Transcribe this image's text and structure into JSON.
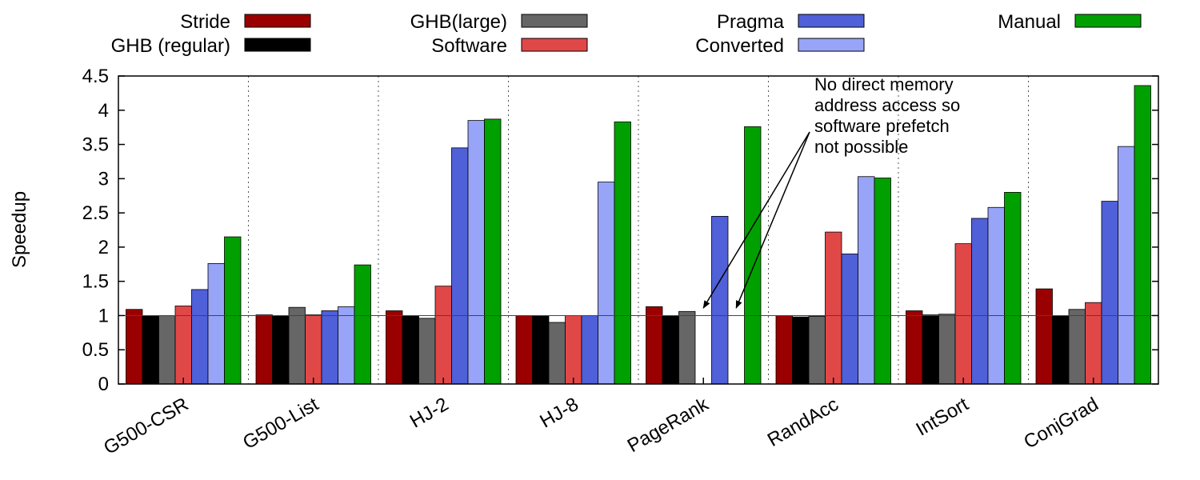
{
  "chart_data": {
    "type": "bar",
    "title": "",
    "xlabel": "",
    "ylabel": "Speedup",
    "ylim": [
      0,
      4.5
    ],
    "yticks": [
      "0",
      "0.5",
      "1",
      "1.5",
      "2",
      "2.5",
      "3",
      "3.5",
      "4",
      "4.5"
    ],
    "grid": "vertical-dotted",
    "reference_line": 1,
    "legend_placement": "top",
    "categories": [
      "G500-CSR",
      "G500-List",
      "HJ-2",
      "HJ-8",
      "PageRank",
      "RandAcc",
      "IntSort",
      "ConjGrad"
    ],
    "series": [
      {
        "name": "Stride",
        "color": "#9b0000",
        "values": [
          1.09,
          1.01,
          1.07,
          1.0,
          1.13,
          1.0,
          1.07,
          1.39
        ]
      },
      {
        "name": "GHB (regular)",
        "color": "#000000",
        "values": [
          1.0,
          1.0,
          1.0,
          1.0,
          1.0,
          0.98,
          1.01,
          1.0
        ]
      },
      {
        "name": "GHB(large)",
        "color": "#666666",
        "values": [
          1.0,
          1.12,
          0.96,
          0.9,
          1.06,
          0.99,
          1.02,
          1.09
        ]
      },
      {
        "name": "Software",
        "color": "#e04848",
        "values": [
          1.14,
          1.01,
          1.43,
          1.0,
          null,
          2.22,
          2.05,
          1.19
        ]
      },
      {
        "name": "Pragma",
        "color": "#4f60d8",
        "values": [
          1.38,
          1.07,
          3.45,
          1.0,
          2.45,
          1.9,
          2.42,
          2.67
        ]
      },
      {
        "name": "Converted",
        "color": "#98a4f8",
        "values": [
          1.76,
          1.13,
          3.85,
          2.95,
          null,
          3.03,
          2.58,
          3.47
        ]
      },
      {
        "name": "Manual",
        "color": "#00a000",
        "values": [
          2.15,
          1.74,
          3.87,
          3.83,
          3.76,
          3.01,
          2.8,
          4.36
        ]
      }
    ],
    "annotation": {
      "lines": [
        "No direct memory",
        "address access so",
        "software prefetch",
        "not possible"
      ],
      "target_category": "PageRank",
      "target_series": [
        "Software",
        "Converted"
      ]
    }
  }
}
